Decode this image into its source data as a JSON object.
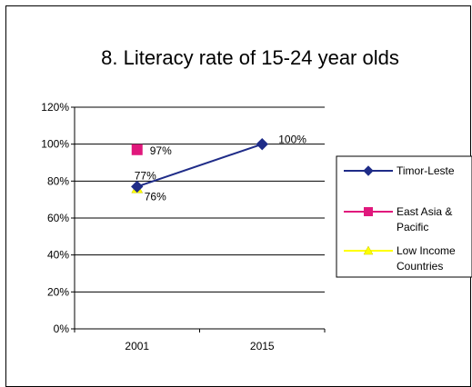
{
  "chart_data": {
    "type": "line",
    "title": "8. Literacy rate of 15-24 year olds",
    "categories": [
      "2001",
      "2015"
    ],
    "y_ticks": [
      "0%",
      "20%",
      "40%",
      "60%",
      "80%",
      "100%",
      "120%"
    ],
    "ylim": [
      0,
      120
    ],
    "grid": true,
    "legend_position": "right",
    "series": [
      {
        "name": "Timor-Leste",
        "color": "#1F2C88",
        "marker": "diamond",
        "points": [
          {
            "x": "2001",
            "y": 77,
            "label": "77%"
          },
          {
            "x": "2015",
            "y": 100,
            "label": "100%"
          }
        ]
      },
      {
        "name": "East Asia & Pacific",
        "color": "#E0187C",
        "marker": "square",
        "points": [
          {
            "x": "2001",
            "y": 97,
            "label": "97%"
          }
        ]
      },
      {
        "name": "Low Income Countries",
        "color": "#FFFF00",
        "marker": "triangle",
        "points": [
          {
            "x": "2001",
            "y": 76,
            "label": "76%"
          }
        ]
      }
    ]
  }
}
